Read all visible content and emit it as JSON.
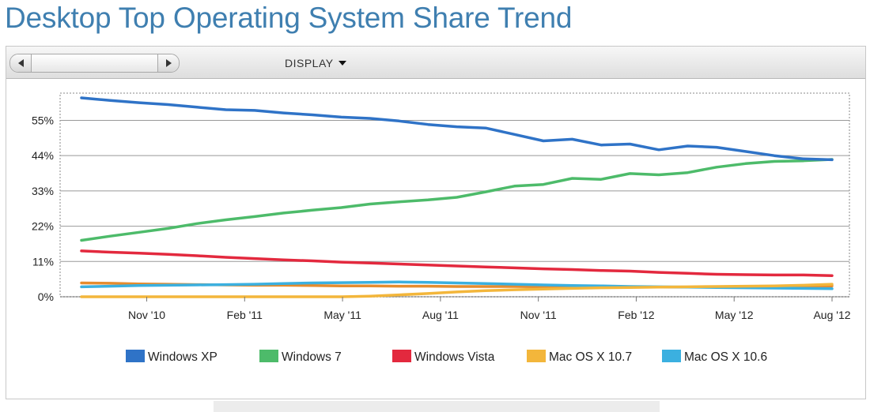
{
  "title": "Desktop Top Operating System Share Trend",
  "toolbar": {
    "display_label": "DISPLAY"
  },
  "chart_data": {
    "type": "line",
    "x_ticks": [
      "Nov '10",
      "Feb '11",
      "May '11",
      "Aug '11",
      "Nov '11",
      "Feb '12",
      "May '12",
      "Aug '12"
    ],
    "x_start": "Sep '10",
    "x_end": "Aug '12",
    "y_ticks": [
      "0%",
      "11%",
      "22%",
      "33%",
      "44%",
      "55%"
    ],
    "ylim": [
      0,
      62
    ],
    "grid": true,
    "legend_position": "bottom",
    "series": [
      {
        "name": "Windows XP",
        "color": "#2f73c7",
        "values": [
          62.0,
          61.2,
          60.5,
          59.9,
          59.1,
          58.3,
          58.1,
          57.3,
          56.7,
          56.0,
          55.6,
          54.8,
          53.7,
          53.0,
          52.6,
          50.6,
          48.6,
          49.1,
          47.3,
          47.6,
          45.8,
          47.0,
          46.6,
          45.3,
          44.0,
          43.0,
          42.7
        ]
      },
      {
        "name": "Windows 7",
        "color": "#4dbb6a",
        "values": [
          17.6,
          18.9,
          20.1,
          21.3,
          22.8,
          24.0,
          25.0,
          26.1,
          27.0,
          27.8,
          28.9,
          29.6,
          30.2,
          31.0,
          32.7,
          34.5,
          35.0,
          36.9,
          36.6,
          38.4,
          38.0,
          38.7,
          40.4,
          41.5,
          42.2,
          42.4,
          42.8
        ]
      },
      {
        "name": "Windows Vista",
        "color": "#e3293e",
        "values": [
          14.3,
          13.9,
          13.6,
          13.2,
          12.8,
          12.3,
          11.9,
          11.5,
          11.2,
          10.8,
          10.5,
          10.2,
          9.9,
          9.6,
          9.3,
          9.0,
          8.7,
          8.5,
          8.2,
          8.0,
          7.6,
          7.3,
          7.0,
          6.9,
          6.8,
          6.8,
          6.6
        ]
      },
      {
        "name": "Mac OS X 10.7",
        "color": "#f3b63b",
        "values": [
          0.0,
          0.0,
          0.0,
          0.0,
          0.0,
          0.0,
          0.0,
          0.0,
          0.0,
          0.0,
          0.2,
          0.6,
          1.0,
          1.5,
          1.9,
          2.2,
          2.4,
          2.6,
          2.8,
          2.9,
          3.0,
          3.1,
          3.2,
          3.3,
          3.4,
          3.6,
          3.9
        ]
      },
      {
        "name": "Mac OS X 10.6",
        "color": "#3bb0e0",
        "values": [
          3.1,
          3.3,
          3.5,
          3.6,
          3.7,
          3.8,
          3.9,
          4.1,
          4.3,
          4.4,
          4.5,
          4.6,
          4.5,
          4.3,
          4.1,
          3.9,
          3.7,
          3.5,
          3.4,
          3.2,
          3.1,
          3.0,
          2.9,
          2.8,
          2.7,
          2.6,
          2.5
        ]
      },
      {
        "name": "",
        "color": "#e68c2e",
        "values": [
          4.3,
          4.2,
          4.0,
          3.9,
          3.8,
          3.7,
          3.6,
          3.6,
          3.5,
          3.4,
          3.4,
          3.3,
          3.3,
          3.2,
          3.2,
          3.2,
          3.1,
          3.1,
          3.1,
          3.0,
          3.0,
          3.0,
          3.0,
          3.0,
          3.1,
          3.2,
          3.4
        ]
      }
    ]
  }
}
